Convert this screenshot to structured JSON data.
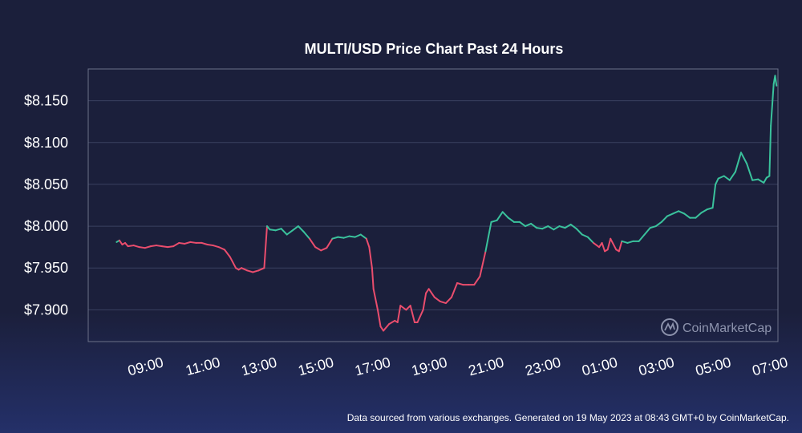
{
  "chart_data": {
    "type": "line",
    "title": "MULTI/USD Price Chart Past 24 Hours",
    "xlabel": "",
    "ylabel": "",
    "x_ticks": [
      "09:00",
      "11:00",
      "13:00",
      "15:00",
      "17:00",
      "19:00",
      "21:00",
      "23:00",
      "01:00",
      "03:00",
      "05:00",
      "07:00"
    ],
    "y_ticks": [
      "$7.900",
      "$7.950",
      "$8.000",
      "$8.050",
      "$8.100",
      "$8.150"
    ],
    "y_tick_values": [
      7.9,
      7.95,
      8.0,
      8.05,
      8.1,
      8.15
    ],
    "ylim": [
      7.862,
      8.188
    ],
    "xlim": [
      7.0,
      31.3
    ],
    "x_unit": "hours (08:00 on 18 May 2023 = 8; values above 24 are the next day)",
    "grid": true,
    "legend": "none",
    "colors": {
      "up": "#3ac29c",
      "down": "#ea4d6d",
      "grid": "#3b4060",
      "axis": "#6b7088"
    },
    "series": [
      {
        "x": [
          8.0,
          8.1,
          8.2,
          8.3,
          8.4,
          8.6,
          8.8,
          9.0,
          9.2,
          9.4,
          9.6,
          9.8,
          10.0,
          10.2,
          10.4,
          10.6,
          10.8,
          11.0,
          11.2,
          11.4,
          11.6,
          11.8,
          12.0,
          12.2,
          12.3,
          12.4,
          12.6,
          12.8,
          13.0,
          13.2,
          13.3,
          13.4,
          13.6,
          13.8,
          14.0,
          14.2,
          14.4,
          14.6,
          14.8,
          15.0,
          15.2,
          15.4,
          15.6,
          15.8,
          16.0,
          16.2,
          16.4,
          16.6,
          16.8,
          16.9,
          17.0,
          17.05,
          17.2,
          17.3,
          17.4,
          17.6,
          17.8,
          17.9,
          18.0,
          18.2,
          18.35,
          18.5,
          18.6,
          18.8,
          18.9,
          19.0,
          19.2,
          19.4,
          19.6,
          19.8,
          20.0,
          20.2,
          20.4,
          20.6,
          20.8,
          21.0,
          21.2,
          21.4,
          21.6,
          21.8,
          22.0,
          22.2,
          22.4,
          22.6,
          22.8,
          23.0,
          23.2,
          23.4,
          23.6,
          23.8,
          24.0,
          24.2,
          24.4,
          24.6,
          24.8,
          25.0,
          25.1,
          25.2,
          25.3,
          25.4,
          25.6,
          25.7,
          25.8,
          26.0,
          26.2,
          26.4,
          26.6,
          26.8,
          27.0,
          27.2,
          27.4,
          27.6,
          27.8,
          28.0,
          28.2,
          28.4,
          28.6,
          28.8,
          29.0,
          29.1,
          29.2,
          29.4,
          29.6,
          29.8,
          30.0,
          30.2,
          30.4,
          30.6,
          30.8,
          30.9,
          31.0,
          31.05,
          31.15,
          31.2,
          31.25
        ],
        "y": [
          7.981,
          7.983,
          7.978,
          7.98,
          7.976,
          7.977,
          7.975,
          7.974,
          7.976,
          7.977,
          7.976,
          7.975,
          7.976,
          7.98,
          7.979,
          7.981,
          7.98,
          7.98,
          7.978,
          7.977,
          7.975,
          7.972,
          7.963,
          7.95,
          7.948,
          7.95,
          7.947,
          7.945,
          7.947,
          7.95,
          8.0,
          7.996,
          7.995,
          7.997,
          7.99,
          7.995,
          8.0,
          7.993,
          7.985,
          7.975,
          7.971,
          7.974,
          7.985,
          7.987,
          7.986,
          7.988,
          7.987,
          7.99,
          7.985,
          7.975,
          7.95,
          7.925,
          7.9,
          7.88,
          7.875,
          7.883,
          7.887,
          7.885,
          7.905,
          7.9,
          7.905,
          7.885,
          7.885,
          7.9,
          7.92,
          7.925,
          7.915,
          7.91,
          7.908,
          7.915,
          7.932,
          7.93,
          7.93,
          7.93,
          7.94,
          7.97,
          8.005,
          8.007,
          8.017,
          8.01,
          8.005,
          8.005,
          8.0,
          8.003,
          7.998,
          7.997,
          8.0,
          7.996,
          8.0,
          7.998,
          8.002,
          7.997,
          7.99,
          7.987,
          7.98,
          7.975,
          7.98,
          7.97,
          7.972,
          7.985,
          7.972,
          7.97,
          7.982,
          7.98,
          7.982,
          7.982,
          7.99,
          7.998,
          8.0,
          8.005,
          8.012,
          8.015,
          8.018,
          8.015,
          8.01,
          8.01,
          8.016,
          8.02,
          8.022,
          8.05,
          8.057,
          8.06,
          8.055,
          8.065,
          8.088,
          8.075,
          8.055,
          8.056,
          8.052,
          8.058,
          8.06,
          8.12,
          8.17,
          8.18,
          8.168
        ]
      }
    ]
  },
  "watermark": {
    "text": "CoinMarketCap",
    "icon": "coinmarketcap-logo-icon"
  },
  "footer": "Data sourced from various exchanges. Generated on 19 May 2023 at 08:43 GMT+0 by CoinMarketCap."
}
